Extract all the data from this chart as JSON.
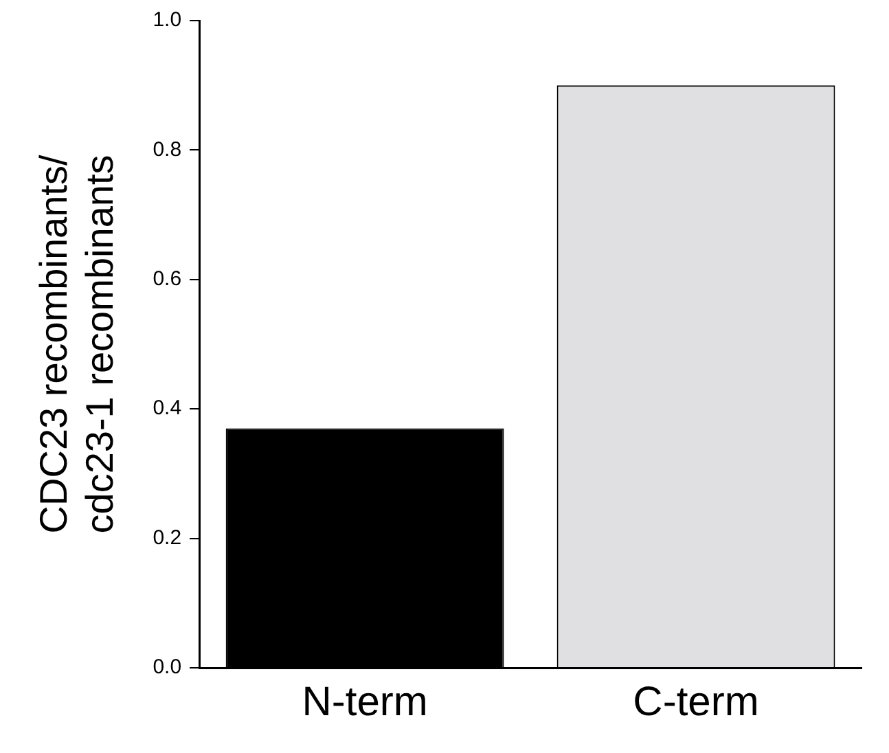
{
  "chart_data": {
    "type": "bar",
    "ylabel": "CDC23 recombinants/\ncdc23-1 recombinants",
    "categories": [
      "N-term",
      "C-term"
    ],
    "values": [
      0.37,
      0.9
    ],
    "colors": [
      "#000000",
      "#e0e0e2"
    ],
    "ylim": [
      0,
      1.0
    ],
    "yticks": [
      {
        "value": 0,
        "label": "0.0"
      },
      {
        "value": 0.2,
        "label": "0.2"
      },
      {
        "value": 0.4,
        "label": "0.4"
      },
      {
        "value": 0.6,
        "label": "0.6"
      },
      {
        "value": 0.8,
        "label": "0.8"
      },
      {
        "value": 1.0,
        "label": "1.0"
      }
    ],
    "grid": false,
    "legend": false
  }
}
